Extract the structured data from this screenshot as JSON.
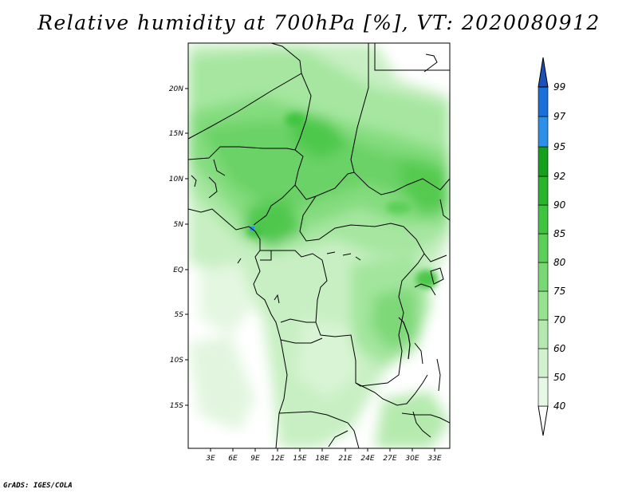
{
  "title": "Relative humidity at 700hPa [%], VT: 2020080912",
  "credit": "GrADS: IGES/COLA",
  "map": {
    "lat_labels": [
      "20N",
      "15N",
      "10N",
      "5N",
      "EQ",
      "5S",
      "10S",
      "15S"
    ],
    "lon_labels": [
      "3E",
      "6E",
      "9E",
      "12E",
      "15E",
      "18E",
      "21E",
      "24E",
      "27E",
      "30E",
      "33E"
    ]
  },
  "colorbar": {
    "levels": [
      "40",
      "50",
      "60",
      "70",
      "75",
      "80",
      "85",
      "90",
      "92",
      "95",
      "97",
      "99"
    ],
    "colors": [
      "#ffffff",
      "#e8f8e6",
      "#d0f2cc",
      "#b4eaaf",
      "#96e290",
      "#78d873",
      "#5ccf58",
      "#3fc43f",
      "#28b42b",
      "#14a01c",
      "#2c8fe8",
      "#1a6fd8",
      "#1a50b8"
    ]
  }
}
